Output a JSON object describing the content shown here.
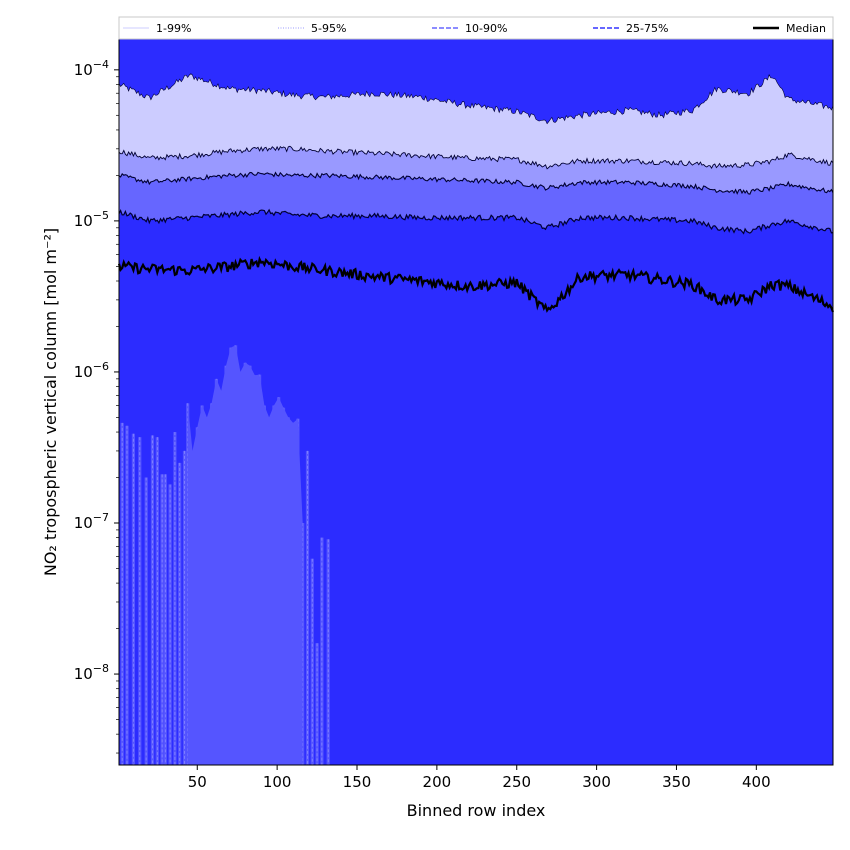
{
  "chart_data": {
    "type": "area",
    "xlabel": "Binned row index",
    "ylabel": "NO₂ tropospheric vertical column [mol m⁻²]",
    "x_range": [
      1,
      448
    ],
    "y_range": [
      2.5e-09,
      0.00016
    ],
    "y_scale": "log",
    "x_ticks": [
      50,
      100,
      150,
      200,
      250,
      300,
      350,
      400
    ],
    "y_ticks": [
      {
        "value": 0.0001,
        "base": "10",
        "exp": "−4"
      },
      {
        "value": 1e-05,
        "base": "10",
        "exp": "−5"
      },
      {
        "value": 1e-06,
        "base": "10",
        "exp": "−6"
      },
      {
        "value": 1e-07,
        "base": "10",
        "exp": "−7"
      },
      {
        "value": 1e-08,
        "base": "10",
        "exp": "−8"
      }
    ],
    "grid": false,
    "legend_position": "top, outside plot, single row",
    "legend": [
      {
        "label": "1-99%",
        "color": "#ccccff",
        "style": "solid-thin"
      },
      {
        "label": "5-95%",
        "color": "#9999ff",
        "style": "dotted"
      },
      {
        "label": "10-90%",
        "color": "#6666ff",
        "style": "dashed"
      },
      {
        "label": "25-75%",
        "color": "#3333ff",
        "style": "dashed"
      },
      {
        "label": "Median",
        "color": "#000000",
        "style": "solid-thick"
      }
    ],
    "x_anchors": [
      1,
      20,
      45,
      70,
      90,
      110,
      130,
      160,
      190,
      220,
      250,
      269,
      290,
      320,
      340,
      360,
      375,
      395,
      410,
      420,
      448
    ],
    "series": [
      {
        "name": "p99",
        "values": [
          8e-05,
          6.5e-05,
          9.2e-05,
          7.5e-05,
          7.3e-05,
          6.8e-05,
          6.6e-05,
          7e-05,
          6.6e-05,
          5.8e-05,
          5.3e-05,
          4.6e-05,
          5e-05,
          5.4e-05,
          5e-05,
          5.4e-05,
          7.5e-05,
          7e-05,
          9.2e-05,
          6.4e-05,
          5.6e-05
        ]
      },
      {
        "name": "p95",
        "values": [
          2.9e-05,
          2.6e-05,
          2.7e-05,
          2.9e-05,
          3e-05,
          3e-05,
          2.9e-05,
          2.8e-05,
          2.7e-05,
          2.6e-05,
          2.55e-05,
          2.3e-05,
          2.5e-05,
          2.5e-05,
          2.45e-05,
          2.4e-05,
          2.3e-05,
          2.35e-05,
          2.5e-05,
          2.75e-05,
          2.4e-05
        ]
      },
      {
        "name": "p90",
        "values": [
          2e-05,
          1.8e-05,
          1.9e-05,
          2e-05,
          2.05e-05,
          2e-05,
          2e-05,
          1.95e-05,
          1.9e-05,
          1.85e-05,
          1.8e-05,
          1.65e-05,
          1.8e-05,
          1.8e-05,
          1.75e-05,
          1.7e-05,
          1.6e-05,
          1.55e-05,
          1.65e-05,
          1.75e-05,
          1.55e-05
        ]
      },
      {
        "name": "p75",
        "values": [
          1.15e-05,
          1e-05,
          1.05e-05,
          1.1e-05,
          1.15e-05,
          1.1e-05,
          1.08e-05,
          1.08e-05,
          1.05e-05,
          1.05e-05,
          1.05e-05,
          9e-06,
          1.05e-05,
          1.05e-05,
          1.02e-05,
          1e-05,
          9e-06,
          8.5e-06,
          9.5e-06,
          1e-05,
          8.5e-06
        ]
      },
      {
        "name": "median",
        "values": [
          5e-06,
          4.8e-06,
          4.7e-06,
          5e-06,
          5.4e-06,
          5e-06,
          4.7e-06,
          4.3e-06,
          4e-06,
          3.7e-06,
          3.9e-06,
          2.5e-06,
          4.3e-06,
          4.4e-06,
          4.1e-06,
          3.8e-06,
          3e-06,
          3e-06,
          3.8e-06,
          3.7e-06,
          2.7e-06
        ]
      }
    ],
    "p10_spikes": {
      "x": [
        3,
        6,
        10,
        14,
        18,
        22,
        25,
        28,
        30,
        33,
        36,
        39,
        42,
        44,
        47,
        50,
        53,
        56,
        59,
        62,
        65,
        68,
        71,
        74,
        77,
        80,
        83,
        86,
        89,
        92,
        95,
        98,
        101,
        104,
        107,
        110,
        113,
        116,
        119,
        122,
        125,
        128,
        132
      ],
      "values": [
        4.6e-07,
        4.4e-07,
        3.9e-07,
        3.7e-07,
        2e-07,
        3.8e-07,
        3.7e-07,
        2.1e-07,
        2.1e-07,
        1.8e-07,
        4e-07,
        2.5e-07,
        3e-07,
        6.2e-07,
        3e-07,
        4.3e-07,
        6e-07,
        5e-07,
        6.2e-07,
        9e-07,
        7.5e-07,
        1.1e-06,
        1.45e-06,
        1.5e-06,
        1e-06,
        1.15e-06,
        1.1e-06,
        9.5e-07,
        9.6e-07,
        6e-07,
        5e-07,
        6e-07,
        6.8e-07,
        5.8e-07,
        5e-07,
        4.6e-07,
        4.9e-07,
        1e-07,
        3e-07,
        5.8e-08,
        1.6e-08,
        8e-08,
        7.8e-08
      ]
    }
  }
}
